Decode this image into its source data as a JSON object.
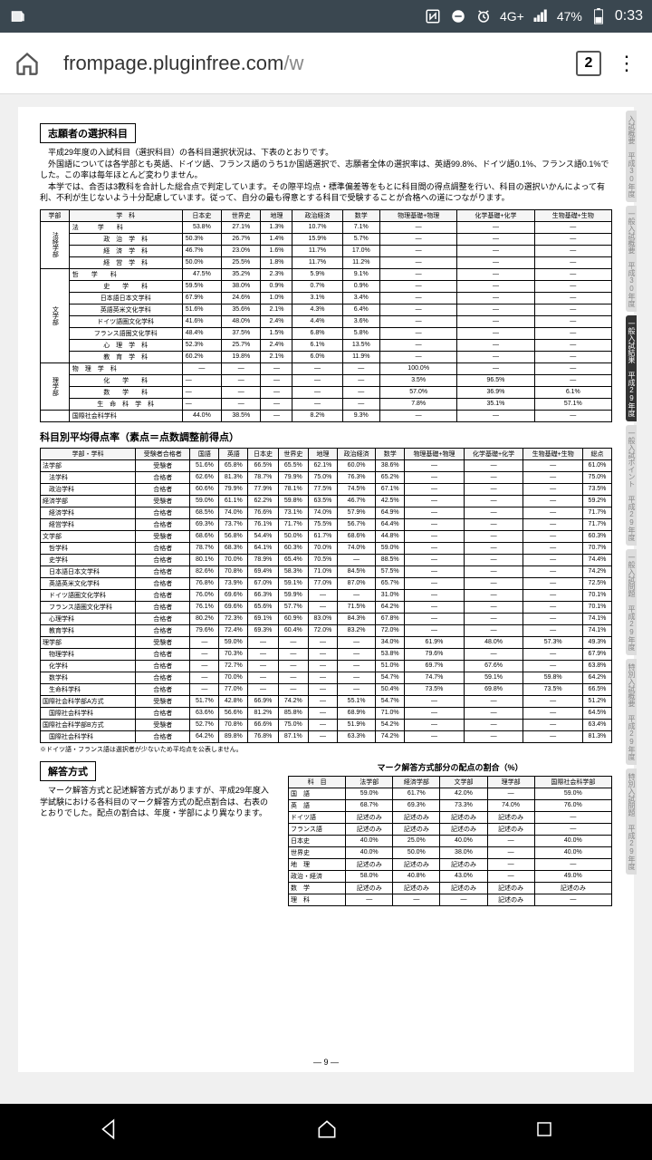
{
  "status": {
    "network": "4G+",
    "battery": "47%",
    "time": "0:33"
  },
  "url": {
    "domain": "frompage.pluginfree.com",
    "path": "/w"
  },
  "tabs": "2",
  "sideTabs": [
    "入試概要 平成30年度",
    "一般入試概要 平成30年度",
    "一般入試結果 平成29年度",
    "一般入試ポイント 平成29年度",
    "一般入試問題 平成29年度",
    "特別入試概要 平成29年度",
    "特別入試問題 平成29年度"
  ],
  "s1": {
    "title": "志願者の選択科目",
    "p1": "　平成29年度の入試科目（選択科目）の各科目選択状況は、下表のとおりです。",
    "p2": "　外国語については各学部とも英語、ドイツ語、フランス語のうち1か国語選択で、志願者全体の選択率は、英語99.8%、ドイツ語0.1%、フランス語0.1%でした。この率は毎年ほとんど変わりません。",
    "p3": "　本学では、合否は3教科を合計した総合点で判定しています。その際平均点・標準偏差等をもとに科目間の得点調整を行い、科目の選択いかんによって有利、不利が生じないよう十分配慮しています。従って、自分の最も得意とする科目で受験することが合格への道につながります。"
  },
  "t1": {
    "head": [
      "学部",
      "学　科",
      "日本史",
      "世界史",
      "地理",
      "政治経済",
      "数学",
      "物理基礎+物理",
      "化学基礎+化学",
      "生物基礎+生物"
    ],
    "groups": [
      {
        "label": "法経学部",
        "rows": [
          [
            "法　　　学　　科",
            "53.8%",
            "27.1%",
            "1.3%",
            "10.7%",
            "7.1%",
            "—",
            "—",
            "—"
          ],
          [
            "政　治　学　科",
            "50.3%",
            "26.7%",
            "1.4%",
            "15.9%",
            "5.7%",
            "—",
            "—",
            "—"
          ],
          [
            "経　済　学　科",
            "46.7%",
            "23.0%",
            "1.6%",
            "11.7%",
            "17.0%",
            "—",
            "—",
            "—"
          ],
          [
            "経　営　学　科",
            "50.0%",
            "25.5%",
            "1.8%",
            "11.7%",
            "11.2%",
            "—",
            "—",
            "—"
          ]
        ]
      },
      {
        "label": "文学部",
        "rows": [
          [
            "哲　　学　　科",
            "47.5%",
            "35.2%",
            "2.3%",
            "5.9%",
            "9.1%",
            "—",
            "—",
            "—"
          ],
          [
            "史　　学　　科",
            "59.5%",
            "38.0%",
            "0.9%",
            "0.7%",
            "0.9%",
            "—",
            "—",
            "—"
          ],
          [
            "日本語日本文学科",
            "67.9%",
            "24.6%",
            "1.0%",
            "3.1%",
            "3.4%",
            "—",
            "—",
            "—"
          ],
          [
            "英語英米文化学科",
            "51.6%",
            "35.6%",
            "2.1%",
            "4.3%",
            "6.4%",
            "—",
            "—",
            "—"
          ],
          [
            "ドイツ語圏文化学科",
            "41.6%",
            "48.0%",
            "2.4%",
            "4.4%",
            "3.6%",
            "—",
            "—",
            "—"
          ],
          [
            "フランス語圏文化学科",
            "48.4%",
            "37.5%",
            "1.5%",
            "6.8%",
            "5.8%",
            "—",
            "—",
            "—"
          ],
          [
            "心　理　学　科",
            "52.3%",
            "25.7%",
            "2.4%",
            "6.1%",
            "13.5%",
            "—",
            "—",
            "—"
          ],
          [
            "教　育　学　科",
            "60.2%",
            "19.8%",
            "2.1%",
            "6.0%",
            "11.9%",
            "—",
            "—",
            "—"
          ]
        ]
      },
      {
        "label": "理学部",
        "rows": [
          [
            "物　理　学　科",
            "—",
            "—",
            "—",
            "—",
            "—",
            "100.0%",
            "—",
            "—"
          ],
          [
            "化　　学　　科",
            "—",
            "—",
            "—",
            "—",
            "—",
            "3.5%",
            "96.5%",
            "—"
          ],
          [
            "数　　学　　科",
            "—",
            "—",
            "—",
            "—",
            "—",
            "57.0%",
            "36.9%",
            "6.1%"
          ],
          [
            "生　命　科　学　科",
            "—",
            "—",
            "—",
            "—",
            "—",
            "7.8%",
            "35.1%",
            "57.1%"
          ]
        ]
      },
      {
        "label": "",
        "rows": [
          [
            "国際社会科学科",
            "44.0%",
            "38.5%",
            "—",
            "8.2%",
            "9.3%",
            "—",
            "—",
            "—"
          ]
        ]
      }
    ]
  },
  "s2": {
    "title": "科目別平均得点率（素点＝点数調整前得点）"
  },
  "t2": {
    "head": [
      "学部・学科",
      "受験者合格者",
      "国語",
      "英語",
      "日本史",
      "世界史",
      "地理",
      "政治経済",
      "数学",
      "物理基礎+物理",
      "化学基礎+化学",
      "生物基礎+生物",
      "総点"
    ],
    "rows": [
      [
        "法学部",
        "受験者",
        "51.6%",
        "65.8%",
        "66.5%",
        "65.5%",
        "62.1%",
        "60.0%",
        "38.6%",
        "—",
        "—",
        "—",
        "61.0%"
      ],
      [
        "　法学科",
        "合格者",
        "62.6%",
        "81.3%",
        "78.7%",
        "79.9%",
        "75.0%",
        "76.3%",
        "65.2%",
        "—",
        "—",
        "—",
        "75.0%"
      ],
      [
        "　政治学科",
        "合格者",
        "60.6%",
        "79.9%",
        "77.9%",
        "78.1%",
        "77.5%",
        "74.5%",
        "67.1%",
        "—",
        "—",
        "—",
        "73.5%"
      ],
      [
        "経済学部",
        "受験者",
        "59.0%",
        "61.1%",
        "62.2%",
        "59.8%",
        "63.5%",
        "46.7%",
        "42.5%",
        "—",
        "—",
        "—",
        "59.2%"
      ],
      [
        "　経済学科",
        "合格者",
        "68.5%",
        "74.0%",
        "76.6%",
        "73.1%",
        "74.0%",
        "57.9%",
        "64.9%",
        "—",
        "—",
        "—",
        "71.7%"
      ],
      [
        "　経営学科",
        "合格者",
        "69.3%",
        "73.7%",
        "76.1%",
        "71.7%",
        "75.5%",
        "56.7%",
        "64.4%",
        "—",
        "—",
        "—",
        "71.7%"
      ],
      [
        "文学部",
        "受験者",
        "68.6%",
        "56.8%",
        "54.4%",
        "50.0%",
        "61.7%",
        "68.6%",
        "44.8%",
        "—",
        "—",
        "—",
        "60.3%"
      ],
      [
        "　哲学科",
        "合格者",
        "78.7%",
        "68.3%",
        "64.1%",
        "60.3%",
        "70.0%",
        "74.0%",
        "59.0%",
        "—",
        "—",
        "—",
        "70.7%"
      ],
      [
        "　史学科",
        "合格者",
        "80.1%",
        "70.0%",
        "78.9%",
        "65.4%",
        "70.5%",
        "—",
        "88.5%",
        "—",
        "—",
        "—",
        "74.4%"
      ],
      [
        "　日本語日本文学科",
        "合格者",
        "82.6%",
        "70.8%",
        "69.4%",
        "58.3%",
        "71.0%",
        "84.5%",
        "57.5%",
        "—",
        "—",
        "—",
        "74.2%"
      ],
      [
        "　英語英米文化学科",
        "合格者",
        "76.8%",
        "73.9%",
        "67.0%",
        "59.1%",
        "77.0%",
        "87.0%",
        "65.7%",
        "—",
        "—",
        "—",
        "72.5%"
      ],
      [
        "　ドイツ語圏文化学科",
        "合格者",
        "76.0%",
        "69.6%",
        "66.3%",
        "59.9%",
        "—",
        "—",
        "31.0%",
        "—",
        "—",
        "—",
        "70.1%"
      ],
      [
        "　フランス語圏文化学科",
        "合格者",
        "76.1%",
        "69.6%",
        "65.6%",
        "57.7%",
        "—",
        "71.5%",
        "64.2%",
        "—",
        "—",
        "—",
        "70.1%"
      ],
      [
        "　心理学科",
        "合格者",
        "80.2%",
        "72.3%",
        "69.1%",
        "60.9%",
        "83.0%",
        "84.3%",
        "67.8%",
        "—",
        "—",
        "—",
        "74.1%"
      ],
      [
        "　教育学科",
        "合格者",
        "79.6%",
        "72.4%",
        "69.3%",
        "60.4%",
        "72.0%",
        "83.2%",
        "72.0%",
        "—",
        "—",
        "—",
        "74.1%"
      ],
      [
        "理学部",
        "受験者",
        "—",
        "59.0%",
        "—",
        "—",
        "—",
        "—",
        "34.0%",
        "61.9%",
        "48.0%",
        "57.3%",
        "49.3%"
      ],
      [
        "　物理学科",
        "合格者",
        "—",
        "70.3%",
        "—",
        "—",
        "—",
        "—",
        "53.8%",
        "79.6%",
        "—",
        "—",
        "67.9%"
      ],
      [
        "　化学科",
        "合格者",
        "—",
        "72.7%",
        "—",
        "—",
        "—",
        "—",
        "51.0%",
        "69.7%",
        "67.6%",
        "—",
        "63.8%"
      ],
      [
        "　数学科",
        "合格者",
        "—",
        "70.0%",
        "—",
        "—",
        "—",
        "—",
        "54.7%",
        "74.7%",
        "59.1%",
        "59.8%",
        "64.2%"
      ],
      [
        "　生命科学科",
        "合格者",
        "—",
        "77.0%",
        "—",
        "—",
        "—",
        "—",
        "50.4%",
        "73.5%",
        "69.8%",
        "73.5%",
        "66.5%"
      ],
      [
        "国際社会科学部A方式",
        "受験者",
        "51.7%",
        "42.8%",
        "66.9%",
        "74.2%",
        "—",
        "55.1%",
        "54.7%",
        "—",
        "—",
        "—",
        "51.2%"
      ],
      [
        "　国際社会科学科",
        "合格者",
        "63.6%",
        "56.6%",
        "81.2%",
        "85.8%",
        "—",
        "68.9%",
        "71.0%",
        "—",
        "—",
        "—",
        "64.5%"
      ],
      [
        "国際社会科学部B方式",
        "受験者",
        "52.7%",
        "70.8%",
        "66.6%",
        "75.0%",
        "—",
        "51.9%",
        "54.2%",
        "—",
        "—",
        "—",
        "63.4%"
      ],
      [
        "　国際社会科学科",
        "合格者",
        "64.2%",
        "89.8%",
        "76.8%",
        "87.1%",
        "—",
        "63.3%",
        "74.2%",
        "—",
        "—",
        "—",
        "81.3%"
      ]
    ]
  },
  "footnote": "※ドイツ語・フランス語は選択者が少ないため平均点を公表しません。",
  "s3": {
    "title": "解答方式",
    "text": "　マーク解答方式と記述解答方式がありますが、平成29年度入学試験における各科目のマーク解答方式の配点割合は、右表のとおりでした。配点の割合は、年度・学部により異なります。"
  },
  "t3": {
    "title": "マーク解答方式部分の配点の割合（%）",
    "head": [
      "科　目",
      "法学部",
      "経済学部",
      "文学部",
      "理学部",
      "国際社会科学部"
    ],
    "rows": [
      [
        "国　語",
        "59.0%",
        "61.7%",
        "42.0%",
        "—",
        "59.0%"
      ],
      [
        "英　語",
        "68.7%",
        "69.3%",
        "73.3%",
        "74.0%",
        "76.0%"
      ],
      [
        "ドイツ語",
        "記述のみ",
        "記述のみ",
        "記述のみ",
        "記述のみ",
        "—"
      ],
      [
        "フランス語",
        "記述のみ",
        "記述のみ",
        "記述のみ",
        "記述のみ",
        "—"
      ],
      [
        "日本史",
        "40.0%",
        "25.0%",
        "40.0%",
        "—",
        "40.0%"
      ],
      [
        "世界史",
        "40.0%",
        "50.0%",
        "38.0%",
        "—",
        "40.0%"
      ],
      [
        "地　理",
        "記述のみ",
        "記述のみ",
        "記述のみ",
        "—",
        "—"
      ],
      [
        "政治・経済",
        "58.0%",
        "40.8%",
        "43.0%",
        "—",
        "49.0%"
      ],
      [
        "数　学",
        "記述のみ",
        "記述のみ",
        "記述のみ",
        "記述のみ",
        "記述のみ"
      ],
      [
        "理　科",
        "—",
        "—",
        "—",
        "記述のみ",
        "—"
      ]
    ]
  },
  "pageNum": "— 9 —"
}
